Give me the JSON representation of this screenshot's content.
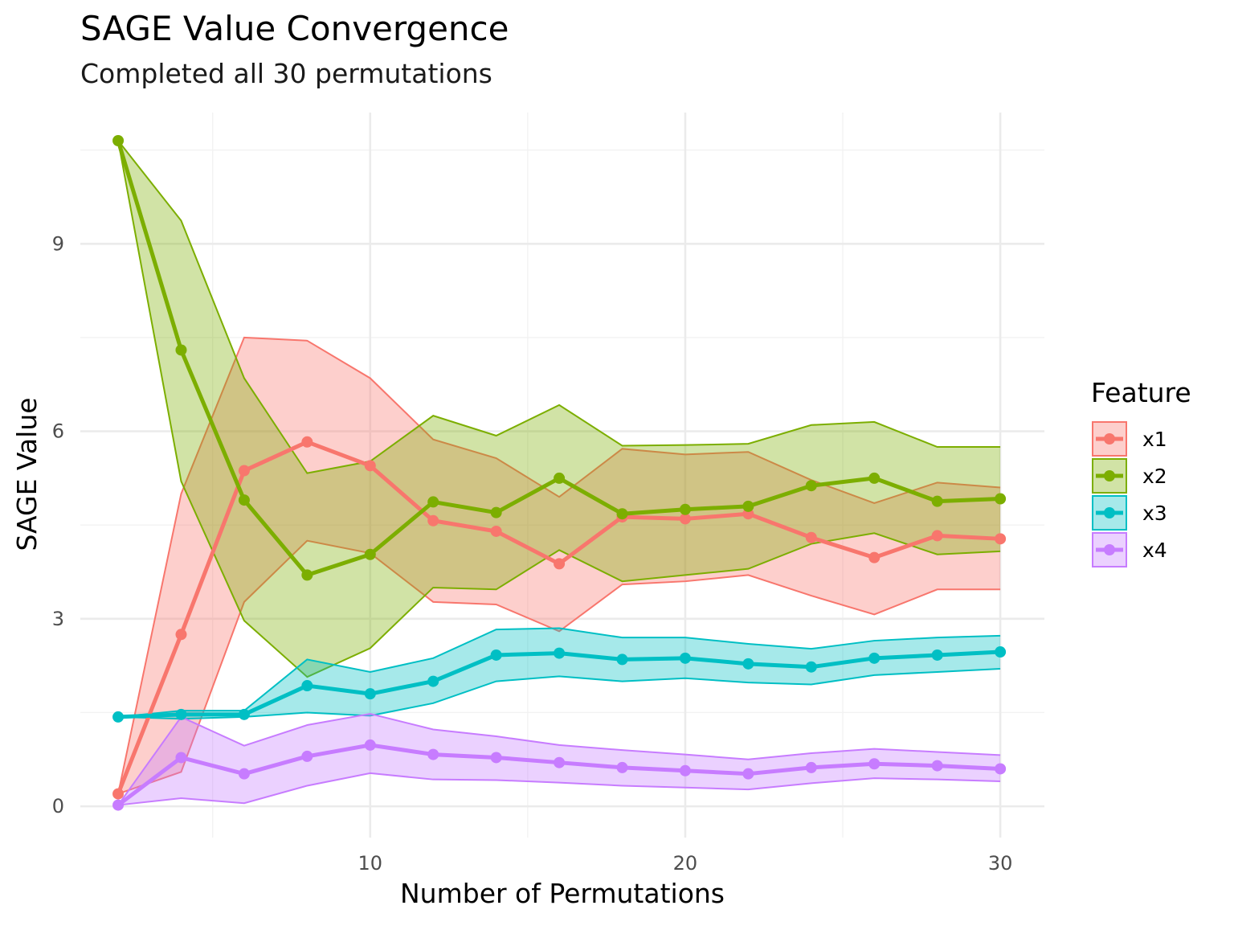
{
  "chart_data": {
    "type": "line",
    "title": "SAGE Value Convergence",
    "subtitle": "Completed all 30 permutations",
    "xlabel": "Number of Permutations",
    "ylabel": "SAGE Value",
    "xlim": [
      0.8,
      31.4
    ],
    "ylim": [
      -0.5,
      11.1
    ],
    "x_ticks": [
      10,
      20,
      30
    ],
    "x_minor_ticks": [
      5,
      15,
      25
    ],
    "y_ticks": [
      0,
      3,
      6,
      9
    ],
    "y_minor_ticks": [
      1.5,
      4.5,
      7.5,
      10.5
    ],
    "grid": true,
    "legend": {
      "title": "Feature",
      "placement": "right"
    },
    "x": [
      2,
      4,
      6,
      8,
      10,
      12,
      14,
      16,
      18,
      20,
      22,
      24,
      26,
      28,
      30
    ],
    "series": [
      {
        "name": "x1",
        "color": "#F8766D",
        "values": [
          0.2,
          2.75,
          5.37,
          5.83,
          5.45,
          4.57,
          4.4,
          3.88,
          4.63,
          4.6,
          4.68,
          4.3,
          3.98,
          4.33,
          4.28
        ],
        "lower": [
          0.2,
          0.55,
          3.27,
          4.25,
          4.05,
          3.27,
          3.23,
          2.8,
          3.55,
          3.6,
          3.7,
          3.37,
          3.07,
          3.47,
          3.47
        ],
        "upper": [
          0.2,
          5.0,
          7.5,
          7.45,
          6.85,
          5.87,
          5.57,
          4.95,
          5.72,
          5.63,
          5.67,
          5.22,
          4.85,
          5.18,
          5.1
        ]
      },
      {
        "name": "x2",
        "color": "#7CAE00",
        "values": [
          10.65,
          7.3,
          4.9,
          3.7,
          4.03,
          4.87,
          4.7,
          5.25,
          4.68,
          4.75,
          4.8,
          5.13,
          5.25,
          4.88,
          4.92
        ],
        "lower": [
          10.65,
          5.2,
          2.97,
          2.07,
          2.53,
          3.5,
          3.47,
          4.1,
          3.6,
          3.7,
          3.8,
          4.2,
          4.37,
          4.03,
          4.08
        ],
        "upper": [
          10.65,
          9.37,
          6.85,
          5.33,
          5.52,
          6.25,
          5.93,
          6.42,
          5.77,
          5.78,
          5.8,
          6.1,
          6.15,
          5.75,
          5.75
        ]
      },
      {
        "name": "x3",
        "color": "#00BFC4",
        "values": [
          1.43,
          1.47,
          1.47,
          1.93,
          1.8,
          2.0,
          2.42,
          2.45,
          2.35,
          2.37,
          2.28,
          2.23,
          2.37,
          2.42,
          2.47
        ],
        "lower": [
          1.43,
          1.4,
          1.43,
          1.5,
          1.45,
          1.65,
          2.0,
          2.08,
          2.0,
          2.05,
          1.98,
          1.95,
          2.1,
          2.15,
          2.2
        ],
        "upper": [
          1.43,
          1.53,
          1.53,
          2.35,
          2.15,
          2.37,
          2.83,
          2.85,
          2.7,
          2.7,
          2.6,
          2.52,
          2.65,
          2.7,
          2.73
        ]
      },
      {
        "name": "x4",
        "color": "#C77CFF",
        "values": [
          0.02,
          0.78,
          0.52,
          0.8,
          0.98,
          0.83,
          0.78,
          0.7,
          0.62,
          0.57,
          0.52,
          0.62,
          0.68,
          0.65,
          0.6
        ],
        "lower": [
          0.02,
          0.13,
          0.05,
          0.33,
          0.53,
          0.43,
          0.42,
          0.38,
          0.33,
          0.3,
          0.27,
          0.37,
          0.45,
          0.43,
          0.4
        ],
        "upper": [
          0.02,
          1.43,
          0.97,
          1.3,
          1.48,
          1.23,
          1.12,
          0.98,
          0.9,
          0.83,
          0.75,
          0.85,
          0.92,
          0.87,
          0.82
        ]
      }
    ]
  }
}
